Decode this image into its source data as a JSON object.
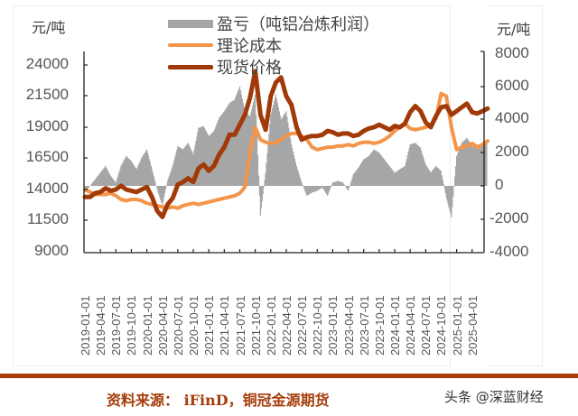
{
  "chart": {
    "left_unit": "元/吨",
    "right_unit": "元/吨",
    "legend": [
      {
        "label": "盈亏（吨铝冶炼利润）",
        "color": "#a6a6a6",
        "kind": "area"
      },
      {
        "label": "理论成本",
        "color": "#f4954a",
        "kind": "line"
      },
      {
        "label": "现货价格",
        "color": "#a13a08",
        "kind": "line"
      }
    ],
    "left_ticks": [
      "24000",
      "21500",
      "19000",
      "16500",
      "14000",
      "11500",
      "9000"
    ],
    "right_ticks": [
      "8000",
      "6000",
      "4000",
      "2000",
      "0",
      "-2000",
      "-4000"
    ],
    "x_ticks": [
      "2019-01-01",
      "2019-04-01",
      "2019-07-01",
      "2019-10-01",
      "2020-01-01",
      "2020-04-01",
      "2020-07-01",
      "2020-10-01",
      "2021-01-01",
      "2021-04-01",
      "2021-07-01",
      "2021-10-01",
      "2022-01-01",
      "2022-04-01",
      "2022-07-01",
      "2022-10-01",
      "2023-01-01",
      "2023-04-01",
      "2023-07-01",
      "2023-10-01",
      "2024-01-01",
      "2024-04-01",
      "2024-07-01",
      "2024-10-01",
      "2025-01-01",
      "2025-04-01"
    ]
  },
  "chart_data": {
    "type": "line",
    "title": "",
    "xlabel": "",
    "ylabel": "元/吨",
    "y2label": "元/吨",
    "ylim": [
      9000,
      24000
    ],
    "y2lim": [
      -4000,
      8000
    ],
    "grid": false,
    "legend_position": "top",
    "x": [
      "2019-01",
      "2019-02",
      "2019-03",
      "2019-04",
      "2019-05",
      "2019-06",
      "2019-07",
      "2019-08",
      "2019-09",
      "2019-10",
      "2019-11",
      "2019-12",
      "2020-01",
      "2020-02",
      "2020-03",
      "2020-04",
      "2020-05",
      "2020-06",
      "2020-07",
      "2020-08",
      "2020-09",
      "2020-10",
      "2020-11",
      "2020-12",
      "2021-01",
      "2021-02",
      "2021-03",
      "2021-04",
      "2021-05",
      "2021-06",
      "2021-07",
      "2021-08",
      "2021-09",
      "2021-10",
      "2021-11",
      "2021-12",
      "2022-01",
      "2022-02",
      "2022-03",
      "2022-04",
      "2022-05",
      "2022-06",
      "2022-07",
      "2022-08",
      "2022-09",
      "2022-10",
      "2022-11",
      "2022-12",
      "2023-01",
      "2023-02",
      "2023-03",
      "2023-04",
      "2023-05",
      "2023-06",
      "2023-07",
      "2023-08",
      "2023-09",
      "2023-10",
      "2023-11",
      "2023-12",
      "2024-01",
      "2024-02",
      "2024-03",
      "2024-04",
      "2024-05",
      "2024-06",
      "2024-07",
      "2024-08",
      "2024-09",
      "2024-10",
      "2024-11",
      "2024-12",
      "2025-01",
      "2025-02",
      "2025-03",
      "2025-04",
      "2025-05",
      "2025-06",
      "2025-07"
    ],
    "series": [
      {
        "name": "现货价格",
        "axis": "left",
        "color": "#a13a08",
        "values": [
          13400,
          13400,
          13700,
          13800,
          14100,
          13900,
          14000,
          14300,
          14000,
          13900,
          13800,
          14000,
          14200,
          13400,
          12300,
          11800,
          12800,
          13300,
          14400,
          14600,
          14900,
          14600,
          15700,
          16000,
          15500,
          15900,
          16800,
          17400,
          18400,
          18400,
          19200,
          20000,
          21400,
          23500,
          20000,
          18800,
          21500,
          22600,
          23000,
          21500,
          20800,
          19000,
          18000,
          18200,
          18300,
          18300,
          18400,
          18700,
          18600,
          18400,
          18500,
          18500,
          18300,
          18400,
          18700,
          18900,
          19000,
          19200,
          19000,
          18800,
          19100,
          19000,
          19300,
          20200,
          20700,
          20300,
          19400,
          19000,
          19900,
          20600,
          20700,
          20000,
          20300,
          20600,
          20900,
          20200,
          20100,
          20300,
          20500
        ]
      },
      {
        "name": "理论成本",
        "axis": "left",
        "color": "#f4954a",
        "values": [
          14000,
          13800,
          13600,
          13600,
          13600,
          13700,
          13500,
          13200,
          13100,
          13200,
          13200,
          13100,
          12900,
          12800,
          12700,
          12600,
          12500,
          12600,
          12500,
          12700,
          12800,
          12900,
          12800,
          12900,
          13000,
          13100,
          13200,
          13300,
          13400,
          13500,
          13700,
          14200,
          17000,
          19000,
          18000,
          17800,
          17700,
          17800,
          18000,
          18300,
          18500,
          18500,
          18300,
          18000,
          17400,
          17200,
          17300,
          17400,
          17400,
          17500,
          17500,
          17600,
          17500,
          17700,
          17800,
          17800,
          17700,
          17800,
          18000,
          18300,
          18700,
          19000,
          19300,
          18900,
          18800,
          18900,
          19000,
          19200,
          19700,
          21700,
          21500,
          19000,
          17200,
          17400,
          17500,
          17700,
          17400,
          17600,
          17900
        ]
      },
      {
        "name": "盈亏（吨铝冶炼利润）",
        "axis": "right",
        "color": "#a6a6a6",
        "type": "area",
        "values": [
          -400,
          0,
          400,
          800,
          1200,
          600,
          200,
          1200,
          1800,
          1500,
          1000,
          1700,
          2200,
          1000,
          -200,
          -1200,
          300,
          1200,
          2400,
          2200,
          2600,
          1900,
          3500,
          3600,
          3000,
          3300,
          4100,
          4500,
          5000,
          5200,
          6000,
          4500,
          4200,
          5500,
          -1800,
          800,
          4300,
          5500,
          4000,
          4500,
          2500,
          1200,
          200,
          -600,
          -400,
          -300,
          -100,
          -600,
          200,
          300,
          200,
          -300,
          700,
          1100,
          1600,
          1800,
          2200,
          2000,
          1600,
          1200,
          800,
          1000,
          1200,
          2500,
          2600,
          2300,
          1300,
          800,
          1200,
          900,
          -700,
          -1900,
          1800,
          2600,
          2900,
          2400,
          2500,
          2500,
          2600
        ]
      }
    ],
    "annotations": [
      "资料来源： iFinD，铜冠金源期货"
    ]
  },
  "footer": {
    "source": "资料来源： iFinD，铜冠金源期货",
    "watermark": "头条 @深蓝财经"
  }
}
